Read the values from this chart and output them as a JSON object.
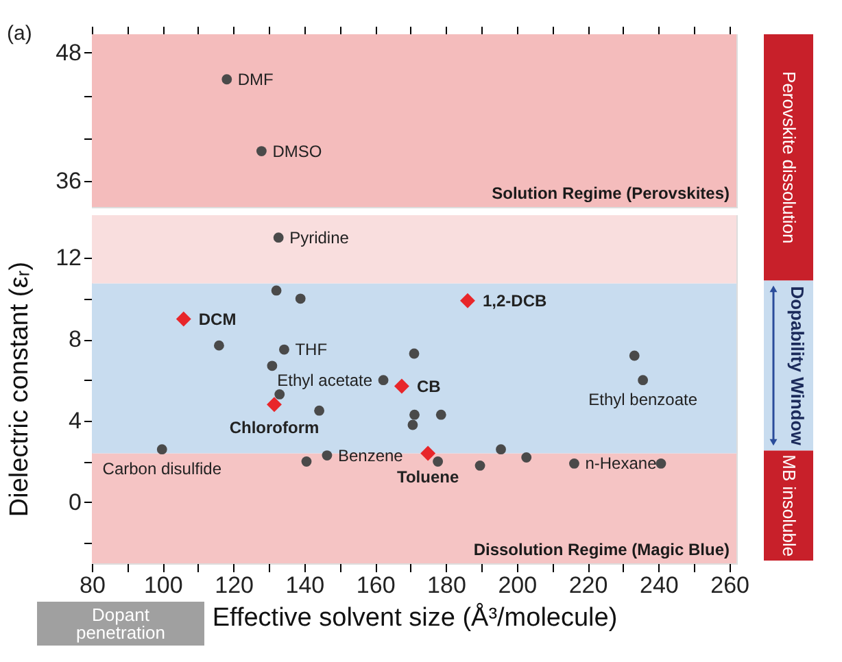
{
  "chart_data": [
    {
      "type": "scatter",
      "xlim": [
        80,
        262
      ],
      "ylim": [
        33.6,
        49.7
      ],
      "xticks": [
        80,
        {
          "value": 90,
          "label": null
        },
        100,
        {
          "value": 110,
          "label": null
        },
        120,
        {
          "value": 130,
          "label": null
        },
        140,
        {
          "value": 150,
          "label": null
        },
        160,
        {
          "value": 170,
          "label": null
        },
        180,
        {
          "value": 190,
          "label": null
        },
        200,
        {
          "value": 210,
          "label": null
        },
        220,
        {
          "value": 230,
          "label": null
        },
        240,
        {
          "value": 250,
          "label": null
        },
        260
      ],
      "yticks": [
        48,
        {
          "value": 44,
          "label": null
        },
        {
          "value": 40,
          "label": null
        },
        36
      ],
      "tick_labels": "y",
      "series": [
        {
          "color": "#4a4a4a",
          "marker": "circle",
          "x": [
            118.1,
            127.9
          ],
          "values": [
            45.5,
            38.8
          ]
        }
      ],
      "bands": [
        {
          "axis": "y",
          "from": 33.6,
          "to": 49.7,
          "color": "#f4bcbc",
          "label": "Solution Regime (Perovskites)"
        }
      ],
      "annotations": [
        "(a)",
        {
          "text": "DMF",
          "x": 118.1,
          "y": 45.5
        },
        {
          "text": "DMSO",
          "x": 127.9,
          "y": 38.8
        }
      ]
    },
    {
      "type": "scatter",
      "xlim": [
        80,
        262
      ],
      "ylim": [
        -3,
        14.1
      ],
      "xticks": [
        80,
        {
          "value": 90,
          "label": null
        },
        100,
        {
          "value": 110,
          "label": null
        },
        120,
        {
          "value": 130,
          "label": null
        },
        140,
        {
          "value": 150,
          "label": null
        },
        160,
        {
          "value": 170,
          "label": null
        },
        180,
        {
          "value": 190,
          "label": null
        },
        200,
        {
          "value": 210,
          "label": null
        },
        220,
        {
          "value": 230,
          "label": null
        },
        240,
        {
          "value": 250,
          "label": null
        },
        260
      ],
      "yticks": [
        {
          "value": -2,
          "label": null
        },
        0,
        {
          "value": 2,
          "label": null
        },
        4,
        {
          "value": 6,
          "label": null
        },
        8,
        {
          "value": 10,
          "label": null
        },
        12
      ],
      "xlabel": "Effective solvent size (Å³/molecule)",
      "ylabel": "Dielectric constant (εᵣ)",
      "series": [
        {
          "color": "#4a4a4a",
          "marker": "circle",
          "x": [
            132.7,
            132.1,
            138.9,
            115.9,
            134.3,
            130.9,
            162.3,
            133.0,
            144.2,
            99.8,
            140.6,
            146.4,
            171.0,
            233.2,
            235.6,
            171.1,
            178.6,
            170.6,
            177.7,
            189.6,
            195.5,
            202.7,
            216.2,
            240.7
          ],
          "values": [
            13.0,
            10.4,
            10.0,
            7.7,
            7.5,
            6.7,
            6.0,
            5.3,
            4.5,
            2.6,
            2.0,
            2.3,
            7.3,
            7.2,
            6.0,
            4.3,
            4.3,
            3.8,
            2.0,
            1.8,
            2.6,
            2.2,
            1.9,
            1.9
          ]
        },
        {
          "color": "#e8262a",
          "marker": "diamond",
          "x": [
            105.9,
            167.5,
            131.5,
            186.1,
            174.9
          ],
          "values": [
            9.0,
            5.7,
            4.8,
            9.9,
            2.4
          ]
        }
      ],
      "bands": [
        {
          "axis": "y",
          "from": -3,
          "to": 2.4,
          "color": "#f5c4c4",
          "label": "Dissolution Regime (Magic Blue)"
        },
        {
          "axis": "y",
          "from": 2.4,
          "to": 10.75,
          "color": "#c8dcef"
        },
        {
          "axis": "y",
          "from": 10.75,
          "to": 14.1,
          "color": "#f9dede"
        }
      ],
      "annotations": [
        {
          "text": "Pyridine",
          "x": 132.7,
          "y": 13.0
        },
        {
          "text": "THF",
          "x": 134.3,
          "y": 7.5
        },
        {
          "text": "Ethyl acetate",
          "x": 162.3,
          "y": 6.0
        },
        {
          "text": "Carbon disulfide",
          "x": 99.8,
          "y": 2.6
        },
        {
          "text": "Benzene",
          "x": 146.4,
          "y": 2.3
        },
        {
          "text": "Ethyl benzoate",
          "x": 235.6,
          "y": 6.0
        },
        {
          "text": "n-Hexane",
          "x": 216.2,
          "y": 1.9
        },
        {
          "text": "DCM",
          "x": 105.9,
          "y": 9.0
        },
        {
          "text": "CB",
          "x": 167.5,
          "y": 5.7
        },
        {
          "text": "Chloroform",
          "x": 131.5,
          "y": 4.8
        },
        {
          "text": "1,2-DCB",
          "x": 186.1,
          "y": 9.9
        },
        {
          "text": "Toluene",
          "x": 174.9,
          "y": 2.4
        },
        "Dopant penetration"
      ]
    },
    {
      "type": "other",
      "annotations": [
        "Perovskite dissolution",
        "Dopability Window",
        "MB insoluble"
      ],
      "colors": [
        "#c8202a",
        "#c8dcef",
        "#c8202a"
      ]
    }
  ]
}
